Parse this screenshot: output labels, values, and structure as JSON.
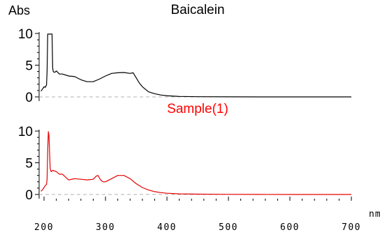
{
  "chart_data": [
    {
      "type": "line",
      "title": "Baicalein",
      "title_color": "#000000",
      "line_color": "#000000",
      "ylabel": "Abs",
      "xlabel": "nm",
      "xlim": [
        192,
        700
      ],
      "ylim": [
        0,
        10
      ],
      "yticks": [
        "0",
        "5",
        "10"
      ],
      "baseline": "dashed at y=0",
      "x": [
        195,
        198,
        200,
        202,
        204,
        205,
        206,
        207,
        208,
        209,
        210,
        211,
        212,
        213,
        214,
        215,
        216,
        218,
        220,
        225,
        230,
        240,
        250,
        260,
        270,
        280,
        290,
        300,
        310,
        320,
        330,
        340,
        345,
        350,
        355,
        360,
        365,
        370,
        380,
        390,
        400,
        420,
        450,
        500,
        550,
        600,
        650,
        700
      ],
      "y": [
        0.9,
        1.3,
        1.6,
        1.5,
        1.9,
        4.0,
        9.9,
        9.9,
        9.9,
        9.9,
        9.9,
        9.9,
        9.9,
        9.9,
        4.6,
        4.0,
        3.9,
        3.9,
        4.1,
        3.6,
        3.6,
        3.3,
        3.2,
        2.7,
        2.4,
        2.4,
        2.8,
        3.3,
        3.7,
        3.8,
        3.85,
        3.7,
        3.8,
        3.0,
        2.2,
        1.6,
        1.2,
        0.8,
        0.5,
        0.3,
        0.18,
        0.08,
        0.03,
        0.01,
        0,
        0,
        0,
        0
      ]
    },
    {
      "type": "line",
      "title": "Sample(1)",
      "title_color": "#ff0000",
      "line_color": "#e60000",
      "xlabel": "nm",
      "xlim": [
        192,
        700
      ],
      "ylim": [
        0,
        10
      ],
      "yticks": [
        "0",
        "5",
        "10"
      ],
      "xticks": [
        "200",
        "300",
        "400",
        "500",
        "600",
        "700"
      ],
      "baseline": "dashed at y=0",
      "x": [
        195,
        198,
        200,
        202,
        204,
        205,
        206,
        207,
        208,
        209,
        210,
        211,
        212,
        213,
        214,
        215,
        216,
        218,
        220,
        225,
        230,
        240,
        250,
        260,
        270,
        280,
        285,
        288,
        290,
        293,
        296,
        300,
        310,
        320,
        330,
        340,
        350,
        360,
        370,
        380,
        390,
        400,
        420,
        450,
        500,
        550,
        600,
        650,
        700
      ],
      "y": [
        0.5,
        0.8,
        1.1,
        1.4,
        1.6,
        2.4,
        7.0,
        9.9,
        9.3,
        6.5,
        4.2,
        3.7,
        3.6,
        3.7,
        3.8,
        3.8,
        3.7,
        3.7,
        3.6,
        3.2,
        3.2,
        2.3,
        2.5,
        2.4,
        2.3,
        2.4,
        2.9,
        3.0,
        2.6,
        2.2,
        2.0,
        2.0,
        2.5,
        3.0,
        3.0,
        2.5,
        1.7,
        1.1,
        0.7,
        0.45,
        0.3,
        0.2,
        0.1,
        0.05,
        0.02,
        0.01,
        0,
        0,
        0
      ]
    }
  ]
}
